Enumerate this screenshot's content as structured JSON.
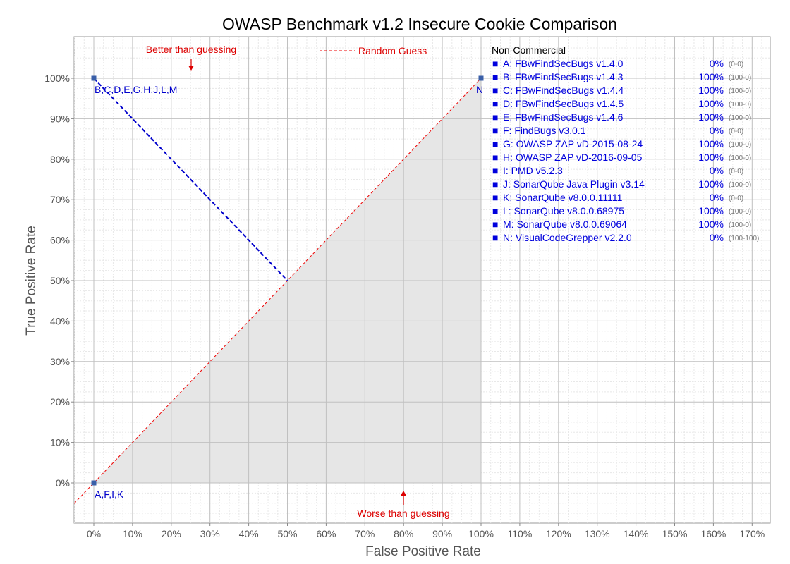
{
  "chart_data": {
    "type": "scatter",
    "title": "OWASP Benchmark v1.2 Insecure Cookie Comparison",
    "xlabel": "False Positive Rate",
    "ylabel": "True Positive Rate",
    "xlim": [
      0,
      170
    ],
    "ylim": [
      0,
      100
    ],
    "x_ticks": [
      "0%",
      "10%",
      "20%",
      "30%",
      "40%",
      "50%",
      "60%",
      "70%",
      "80%",
      "90%",
      "100%",
      "110%",
      "120%",
      "130%",
      "140%",
      "150%",
      "160%",
      "170%"
    ],
    "y_ticks": [
      "0%",
      "10%",
      "20%",
      "30%",
      "40%",
      "50%",
      "60%",
      "70%",
      "80%",
      "90%",
      "100%"
    ],
    "grid": true,
    "points": [
      {
        "x": 0,
        "y": 100,
        "label": "B,C,D,E,G,H,J,L,M"
      },
      {
        "x": 100,
        "y": 100,
        "label": "N"
      },
      {
        "x": 0,
        "y": 0,
        "label": "A,F,I,K"
      }
    ],
    "average_line": [
      {
        "x": 0,
        "y": 100
      },
      {
        "x": 50,
        "y": 50
      }
    ],
    "random_guess_label": "Random Guess",
    "annotations": {
      "better": "Better than guessing",
      "worse": "Worse than guessing"
    },
    "legend": {
      "heading": "Non-Commercial",
      "marker": "■",
      "items": [
        {
          "name": "A: FBwFindSecBugs v1.4.0",
          "score": "0%",
          "ratio": "(0-0)"
        },
        {
          "name": "B: FBwFindSecBugs v1.4.3",
          "score": "100%",
          "ratio": "(100-0)"
        },
        {
          "name": "C: FBwFindSecBugs v1.4.4",
          "score": "100%",
          "ratio": "(100-0)"
        },
        {
          "name": "D: FBwFindSecBugs v1.4.5",
          "score": "100%",
          "ratio": "(100-0)"
        },
        {
          "name": "E: FBwFindSecBugs v1.4.6",
          "score": "100%",
          "ratio": "(100-0)"
        },
        {
          "name": "F: FindBugs v3.0.1",
          "score": "0%",
          "ratio": "(0-0)"
        },
        {
          "name": "G: OWASP ZAP vD-2015-08-24",
          "score": "100%",
          "ratio": "(100-0)"
        },
        {
          "name": "H: OWASP ZAP vD-2016-09-05",
          "score": "100%",
          "ratio": "(100-0)"
        },
        {
          "name": "I:  PMD v5.2.3",
          "score": "0%",
          "ratio": "(0-0)"
        },
        {
          "name": "J:  SonarQube Java Plugin v3.14",
          "score": "100%",
          "ratio": "(100-0)"
        },
        {
          "name": "K: SonarQube v8.0.0.11111",
          "score": "0%",
          "ratio": "(0-0)"
        },
        {
          "name": "L: SonarQube v8.0.0.68975",
          "score": "100%",
          "ratio": "(100-0)"
        },
        {
          "name": "M: SonarQube v8.0.0.69064",
          "score": "100%",
          "ratio": "(100-0)"
        },
        {
          "name": "N: VisualCodeGrepper v2.2.0",
          "score": "0%",
          "ratio": "(100-100)"
        }
      ]
    },
    "colors": {
      "point": "#3a5fa8",
      "point_label": "#0000cc",
      "average_line": "#0000cc",
      "random_line": "#ee0000",
      "annotation": "#dd0000",
      "below_fill": "#e6e6e6",
      "grid_major": "#c0c0c0",
      "grid_minor": "#e8e8e8",
      "legend_text": "#0000dd"
    }
  }
}
